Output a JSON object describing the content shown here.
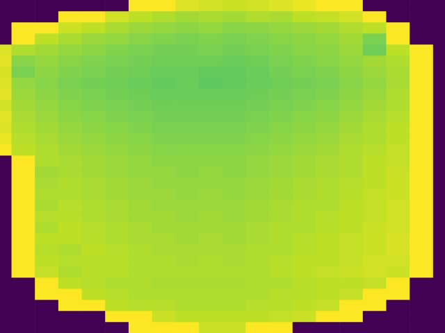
{
  "chart_data": {
    "type": "heatmap",
    "color": "viridis",
    "color_range": [
      0,
      1
    ],
    "tick_labels": false,
    "cells": [
      [
        0,
        0,
        0,
        0,
        0,
        0,
        1,
        1,
        0.95,
        0.93,
        0.92,
        0.93,
        0.95,
        0.97,
        1,
        1,
        0,
        0,
        0,
        0
      ],
      [
        0,
        0,
        0,
        1,
        1,
        0.93,
        0.9,
        0.88,
        0.86,
        0.87,
        0.86,
        0.88,
        0.87,
        0.9,
        0.91,
        0.93,
        1,
        0,
        0,
        0
      ],
      [
        0,
        1,
        1,
        0.92,
        0.9,
        0.87,
        0.85,
        0.84,
        0.83,
        0.84,
        0.82,
        0.83,
        0.84,
        0.85,
        0.86,
        0.88,
        0.9,
        1,
        0,
        0
      ],
      [
        0,
        1,
        0.9,
        0.87,
        0.85,
        0.84,
        0.82,
        0.81,
        0.8,
        0.81,
        0.8,
        0.81,
        0.82,
        0.83,
        0.84,
        0.86,
        0.8,
        1,
        0,
        0
      ],
      [
        0.95,
        0.88,
        0.86,
        0.84,
        0.83,
        0.81,
        0.8,
        0.79,
        0.79,
        0.8,
        0.79,
        0.8,
        0.81,
        0.82,
        0.83,
        0.85,
        0.78,
        0.9,
        1,
        0
      ],
      [
        0.96,
        0.82,
        0.84,
        0.82,
        0.81,
        0.8,
        0.79,
        0.78,
        0.78,
        0.78,
        0.77,
        0.78,
        0.8,
        0.81,
        0.82,
        0.84,
        0.86,
        0.88,
        1,
        0
      ],
      [
        0.94,
        0.8,
        0.83,
        0.81,
        0.8,
        0.79,
        0.78,
        0.77,
        0.77,
        0.76,
        0.76,
        0.77,
        0.79,
        0.8,
        0.81,
        0.83,
        0.85,
        0.87,
        1,
        0
      ],
      [
        0.95,
        0.84,
        0.82,
        0.8,
        0.79,
        0.78,
        0.77,
        0.76,
        0.77,
        0.75,
        0.76,
        0.77,
        0.78,
        0.79,
        0.8,
        0.82,
        0.84,
        0.87,
        1,
        0
      ],
      [
        0.96,
        0.85,
        0.83,
        0.81,
        0.8,
        0.79,
        0.78,
        0.77,
        0.77,
        0.77,
        0.77,
        0.78,
        0.79,
        0.8,
        0.81,
        0.83,
        0.85,
        0.88,
        1,
        0
      ],
      [
        0.93,
        0.86,
        0.84,
        0.82,
        0.81,
        0.8,
        0.79,
        0.78,
        0.78,
        0.78,
        0.78,
        0.79,
        0.8,
        0.81,
        0.82,
        0.84,
        0.86,
        0.88,
        1,
        0
      ],
      [
        0.96,
        0.87,
        0.85,
        0.83,
        0.82,
        0.81,
        0.8,
        0.79,
        0.79,
        0.79,
        0.79,
        0.8,
        0.81,
        0.82,
        0.83,
        0.85,
        0.87,
        0.89,
        1,
        0
      ],
      [
        0.95,
        0.88,
        0.86,
        0.84,
        0.83,
        0.82,
        0.81,
        0.8,
        0.8,
        0.8,
        0.8,
        0.81,
        0.82,
        0.83,
        0.84,
        0.86,
        0.88,
        0.9,
        1,
        0
      ],
      [
        0.97,
        0.89,
        0.87,
        0.85,
        0.84,
        0.83,
        0.82,
        0.81,
        0.81,
        0.81,
        0.81,
        0.82,
        0.83,
        0.84,
        0.85,
        0.87,
        0.88,
        0.9,
        1,
        0
      ],
      [
        1,
        0.9,
        0.88,
        0.86,
        0.85,
        0.84,
        0.83,
        0.82,
        0.82,
        0.82,
        0.82,
        0.83,
        0.84,
        0.85,
        0.86,
        0.88,
        0.89,
        0.91,
        1,
        0
      ],
      [
        0,
        1,
        0.88,
        0.87,
        0.86,
        0.85,
        0.84,
        0.83,
        0.83,
        0.83,
        0.83,
        0.84,
        0.85,
        0.86,
        0.87,
        0.88,
        0.9,
        0.91,
        1,
        0
      ],
      [
        0,
        1,
        0.86,
        0.87,
        0.86,
        0.85,
        0.84,
        0.84,
        0.83,
        0.84,
        0.83,
        0.84,
        0.85,
        0.86,
        0.87,
        0.88,
        0.9,
        0.92,
        1,
        0
      ],
      [
        0,
        1,
        0.87,
        0.88,
        0.87,
        0.86,
        0.85,
        0.84,
        0.84,
        0.84,
        0.84,
        0.85,
        0.86,
        0.87,
        0.88,
        0.89,
        0.9,
        0.92,
        1,
        0
      ],
      [
        0,
        1,
        0.88,
        0.88,
        0.87,
        0.86,
        0.85,
        0.85,
        0.84,
        0.85,
        0.84,
        0.85,
        0.86,
        0.87,
        0.88,
        0.89,
        0.91,
        0.92,
        1,
        0
      ],
      [
        0,
        1,
        0.87,
        0.89,
        0.88,
        0.87,
        0.86,
        0.85,
        0.85,
        0.85,
        0.85,
        0.86,
        0.87,
        0.88,
        0.88,
        0.9,
        0.91,
        0.93,
        1,
        0
      ],
      [
        0,
        1,
        0.89,
        0.89,
        0.88,
        0.87,
        0.86,
        0.86,
        0.85,
        0.86,
        0.85,
        0.86,
        0.87,
        0.88,
        0.89,
        0.9,
        0.91,
        0.93,
        1,
        0
      ],
      [
        0,
        1,
        0.88,
        0.9,
        0.89,
        0.88,
        0.87,
        0.86,
        0.86,
        0.86,
        0.86,
        0.87,
        0.88,
        0.88,
        0.89,
        0.9,
        0.92,
        0.93,
        1,
        0
      ],
      [
        0,
        1,
        0.9,
        0.9,
        0.89,
        0.88,
        0.87,
        0.87,
        0.86,
        0.87,
        0.86,
        0.87,
        0.88,
        0.89,
        0.9,
        0.91,
        0.92,
        0.94,
        1,
        0
      ],
      [
        0,
        1,
        0.89,
        0.88,
        0.9,
        0.89,
        0.88,
        0.87,
        0.87,
        0.87,
        0.87,
        0.88,
        0.88,
        0.89,
        0.9,
        0.91,
        0.92,
        0.94,
        1,
        0
      ],
      [
        0,
        1,
        0.9,
        0.89,
        0.89,
        0.89,
        0.88,
        0.88,
        0.87,
        0.88,
        0.87,
        0.88,
        0.89,
        0.9,
        0.9,
        0.91,
        0.93,
        0.93,
        1,
        0
      ],
      [
        0,
        1,
        0.91,
        0.88,
        0.89,
        0.89,
        0.88,
        0.88,
        0.88,
        0.88,
        0.88,
        0.88,
        0.89,
        0.9,
        0.91,
        0.92,
        0.93,
        0.92,
        1,
        0
      ],
      [
        0,
        0,
        1,
        0.9,
        0.89,
        0.88,
        0.88,
        0.87,
        0.87,
        0.87,
        0.87,
        0.88,
        0.88,
        0.89,
        0.9,
        0.9,
        0.91,
        1,
        0,
        0
      ],
      [
        0,
        0,
        1,
        1,
        0.9,
        0.89,
        0.88,
        0.88,
        0.88,
        0.88,
        0.88,
        0.88,
        0.89,
        0.89,
        0.9,
        0.91,
        1,
        1,
        0,
        0
      ],
      [
        0,
        0,
        0,
        1,
        1,
        0.9,
        0.89,
        0.89,
        0.88,
        0.88,
        0.88,
        0.89,
        0.89,
        0.9,
        0.91,
        1,
        1,
        0,
        0,
        0
      ],
      [
        0,
        0,
        0,
        0,
        0,
        1,
        1,
        0.92,
        0.9,
        0.9,
        0.9,
        0.9,
        0.91,
        0.92,
        1,
        1,
        0,
        0,
        0,
        0
      ],
      [
        0,
        0,
        0,
        0,
        0,
        0,
        1,
        1,
        1,
        0.92,
        0.92,
        1,
        1,
        0,
        0,
        0,
        0,
        0,
        0,
        0
      ]
    ]
  }
}
